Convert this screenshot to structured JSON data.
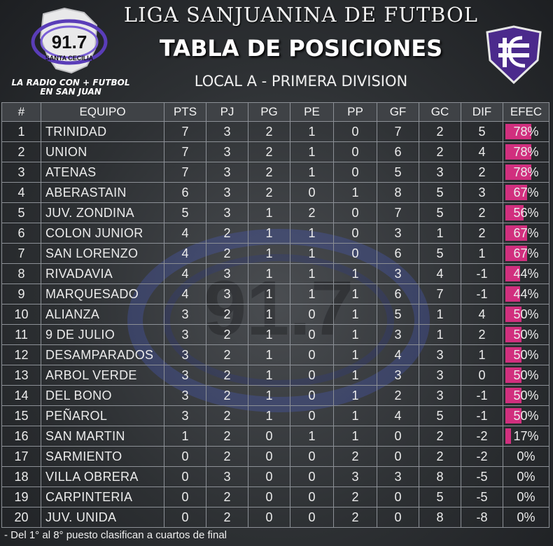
{
  "header": {
    "radio_frequency": "91.7",
    "radio_name": "SANTA CECILIA",
    "slogan": "LA RADIO CON + FUTBOL EN SAN JUAN",
    "league": "LIGA SANJUANINA DE FUTBOL",
    "title": "TABLA DE POSICIONES",
    "division": "LOCAL A - PRIMERA DIVISION"
  },
  "table": {
    "columns": [
      "#",
      "EQUIPO",
      "PTS",
      "PJ",
      "PG",
      "PE",
      "PP",
      "GF",
      "GC",
      "DIF",
      "EFEC"
    ],
    "rows": [
      {
        "pos": "1",
        "team": "TRINIDAD",
        "pts": "7",
        "pj": "3",
        "pg": "2",
        "pe": "1",
        "pp": "0",
        "gf": "7",
        "gc": "2",
        "dif": "5",
        "efec": "78%",
        "efec_value": 0.78
      },
      {
        "pos": "2",
        "team": "UNION",
        "pts": "7",
        "pj": "3",
        "pg": "2",
        "pe": "1",
        "pp": "0",
        "gf": "6",
        "gc": "2",
        "dif": "4",
        "efec": "78%",
        "efec_value": 0.78
      },
      {
        "pos": "3",
        "team": "ATENAS",
        "pts": "7",
        "pj": "3",
        "pg": "2",
        "pe": "1",
        "pp": "0",
        "gf": "5",
        "gc": "3",
        "dif": "2",
        "efec": "78%",
        "efec_value": 0.78
      },
      {
        "pos": "4",
        "team": "ABERASTAIN",
        "pts": "6",
        "pj": "3",
        "pg": "2",
        "pe": "0",
        "pp": "1",
        "gf": "8",
        "gc": "5",
        "dif": "3",
        "efec": "67%",
        "efec_value": 0.67
      },
      {
        "pos": "5",
        "team": "JUV. ZONDINA",
        "pts": "5",
        "pj": "3",
        "pg": "1",
        "pe": "2",
        "pp": "0",
        "gf": "7",
        "gc": "5",
        "dif": "2",
        "efec": "56%",
        "efec_value": 0.56
      },
      {
        "pos": "6",
        "team": "COLON JUNIOR",
        "pts": "4",
        "pj": "2",
        "pg": "1",
        "pe": "1",
        "pp": "0",
        "gf": "3",
        "gc": "1",
        "dif": "2",
        "efec": "67%",
        "efec_value": 0.67
      },
      {
        "pos": "7",
        "team": "SAN LORENZO",
        "pts": "4",
        "pj": "2",
        "pg": "1",
        "pe": "1",
        "pp": "0",
        "gf": "6",
        "gc": "5",
        "dif": "1",
        "efec": "67%",
        "efec_value": 0.67
      },
      {
        "pos": "8",
        "team": "RIVADAVIA",
        "pts": "4",
        "pj": "3",
        "pg": "1",
        "pe": "1",
        "pp": "1",
        "gf": "3",
        "gc": "4",
        "dif": "-1",
        "efec": "44%",
        "efec_value": 0.44
      },
      {
        "pos": "9",
        "team": "MARQUESADO",
        "pts": "4",
        "pj": "3",
        "pg": "1",
        "pe": "1",
        "pp": "1",
        "gf": "6",
        "gc": "7",
        "dif": "-1",
        "efec": "44%",
        "efec_value": 0.44
      },
      {
        "pos": "10",
        "team": "ALIANZA",
        "pts": "3",
        "pj": "2",
        "pg": "1",
        "pe": "0",
        "pp": "1",
        "gf": "5",
        "gc": "1",
        "dif": "4",
        "efec": "50%",
        "efec_value": 0.5
      },
      {
        "pos": "11",
        "team": "9 DE JULIO",
        "pts": "3",
        "pj": "2",
        "pg": "1",
        "pe": "0",
        "pp": "1",
        "gf": "3",
        "gc": "1",
        "dif": "2",
        "efec": "50%",
        "efec_value": 0.5
      },
      {
        "pos": "12",
        "team": "DESAMPARADOS",
        "pts": "3",
        "pj": "2",
        "pg": "1",
        "pe": "0",
        "pp": "1",
        "gf": "4",
        "gc": "3",
        "dif": "1",
        "efec": "50%",
        "efec_value": 0.5
      },
      {
        "pos": "13",
        "team": "ARBOL VERDE",
        "pts": "3",
        "pj": "2",
        "pg": "1",
        "pe": "0",
        "pp": "1",
        "gf": "3",
        "gc": "3",
        "dif": "0",
        "efec": "50%",
        "efec_value": 0.5
      },
      {
        "pos": "14",
        "team": "DEL BONO",
        "pts": "3",
        "pj": "2",
        "pg": "1",
        "pe": "0",
        "pp": "1",
        "gf": "2",
        "gc": "3",
        "dif": "-1",
        "efec": "50%",
        "efec_value": 0.5
      },
      {
        "pos": "15",
        "team": "PEÑAROL",
        "pts": "3",
        "pj": "2",
        "pg": "1",
        "pe": "0",
        "pp": "1",
        "gf": "4",
        "gc": "5",
        "dif": "-1",
        "efec": "50%",
        "efec_value": 0.5
      },
      {
        "pos": "16",
        "team": "SAN MARTIN",
        "pts": "1",
        "pj": "2",
        "pg": "0",
        "pe": "1",
        "pp": "1",
        "gf": "0",
        "gc": "2",
        "dif": "-2",
        "efec": "17%",
        "efec_value": 0.17
      },
      {
        "pos": "17",
        "team": "SARMIENTO",
        "pts": "0",
        "pj": "2",
        "pg": "0",
        "pe": "0",
        "pp": "2",
        "gf": "0",
        "gc": "2",
        "dif": "-2",
        "efec": "0%",
        "efec_value": 0
      },
      {
        "pos": "18",
        "team": "VILLA OBRERA",
        "pts": "0",
        "pj": "3",
        "pg": "0",
        "pe": "0",
        "pp": "3",
        "gf": "3",
        "gc": "8",
        "dif": "-5",
        "efec": "0%",
        "efec_value": 0
      },
      {
        "pos": "19",
        "team": "CARPINTERIA",
        "pts": "0",
        "pj": "2",
        "pg": "0",
        "pe": "0",
        "pp": "2",
        "gf": "0",
        "gc": "5",
        "dif": "-5",
        "efec": "0%",
        "efec_value": 0
      },
      {
        "pos": "20",
        "team": "JUV. UNIDA",
        "pts": "0",
        "pj": "2",
        "pg": "0",
        "pe": "0",
        "pp": "2",
        "gf": "0",
        "gc": "8",
        "dif": "-8",
        "efec": "0%",
        "efec_value": 0
      }
    ]
  },
  "footnote": "- Del 1° al 8° puesto clasifican a cuartos de final",
  "colors": {
    "efec_bar": "#d12f7e",
    "radio_logo_ring": "#5a3db8",
    "league_crest": "#4b2a8c"
  }
}
